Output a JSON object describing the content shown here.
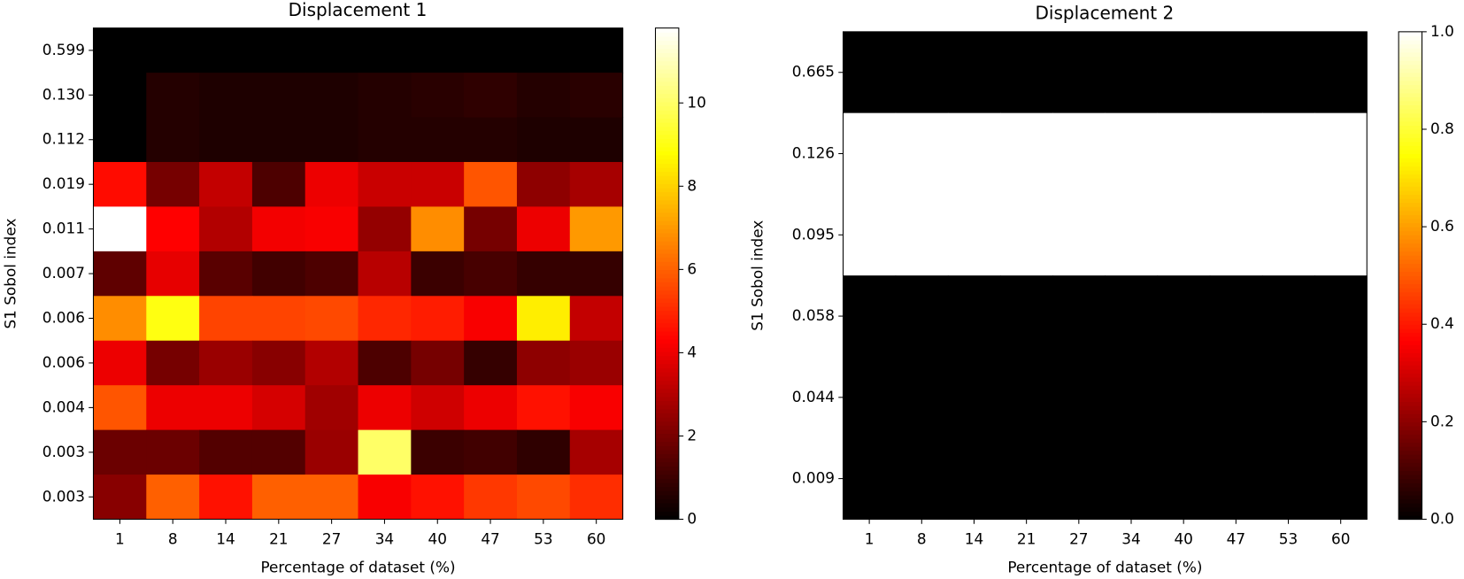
{
  "chart_data": [
    {
      "type": "heatmap",
      "title": "Displacement 1",
      "x_label": "Percentage of dataset (%)",
      "y_label": "S1 Sobol index",
      "colormap": "hot",
      "categories": [
        "1",
        "8",
        "14",
        "21",
        "27",
        "34",
        "40",
        "47",
        "53",
        "60"
      ],
      "y_categories": [
        "0.599",
        "0.130",
        "0.112",
        "0.019",
        "0.011",
        "0.007",
        "0.006",
        "0.006",
        "0.004",
        "0.003",
        "0.003"
      ],
      "values": [
        [
          0,
          0,
          0,
          0,
          0,
          0,
          0,
          0,
          0,
          0
        ],
        [
          0,
          0.6,
          0.5,
          0.5,
          0.5,
          0.6,
          0.7,
          0.8,
          0.6,
          0.7
        ],
        [
          0,
          0.6,
          0.5,
          0.5,
          0.5,
          0.6,
          0.6,
          0.6,
          0.5,
          0.5
        ],
        [
          4.5,
          2.0,
          3.3,
          1.3,
          4.0,
          3.4,
          3.4,
          5.8,
          2.4,
          2.8
        ],
        [
          11.8,
          4.3,
          3.0,
          4.1,
          4.2,
          2.5,
          6.8,
          2.0,
          4.0,
          7.0
        ],
        [
          1.6,
          3.9,
          1.5,
          1.1,
          1.3,
          3.1,
          1.0,
          1.2,
          0.9,
          0.9
        ],
        [
          6.8,
          9.0,
          5.5,
          5.5,
          5.6,
          5.0,
          4.8,
          4.2,
          8.5,
          3.3
        ],
        [
          4.0,
          2.0,
          2.6,
          2.3,
          3.0,
          1.3,
          2.0,
          0.9,
          2.4,
          2.6
        ],
        [
          5.8,
          4.0,
          4.0,
          3.6,
          2.7,
          4.0,
          3.5,
          4.0,
          4.6,
          4.2
        ],
        [
          1.8,
          1.8,
          1.4,
          1.4,
          2.6,
          10.0,
          1.0,
          1.1,
          0.8,
          2.8
        ],
        [
          2.3,
          6.0,
          4.6,
          6.0,
          6.0,
          4.2,
          4.6,
          5.3,
          5.6,
          5.1
        ]
      ],
      "clim": [
        0,
        11.8
      ],
      "cticks": [
        0,
        2,
        4,
        6,
        8,
        10
      ]
    },
    {
      "type": "heatmap",
      "title": "Displacement 2",
      "x_label": "Percentage of dataset (%)",
      "y_label": "S1 Sobol index",
      "colormap": "hot",
      "categories": [
        "1",
        "8",
        "14",
        "21",
        "27",
        "34",
        "40",
        "47",
        "53",
        "60"
      ],
      "y_categories": [
        "0.665",
        "0.126",
        "0.095",
        "0.058",
        "0.044",
        "0.009"
      ],
      "values": [
        [
          0,
          0,
          0,
          0,
          0,
          0,
          0,
          0,
          0,
          0
        ],
        [
          1,
          1,
          1,
          1,
          1,
          1,
          1,
          1,
          1,
          1
        ],
        [
          1,
          1,
          1,
          1,
          1,
          1,
          1,
          1,
          1,
          1
        ],
        [
          0,
          0,
          0,
          0,
          0,
          0,
          0,
          0,
          0,
          0
        ],
        [
          0,
          0,
          0,
          0,
          0,
          0,
          0,
          0,
          0,
          0
        ],
        [
          0,
          0,
          0,
          0,
          0,
          0,
          0,
          0,
          0,
          0
        ]
      ],
      "clim": [
        0,
        1
      ],
      "cticks": [
        {
          "value": 0,
          "label": "0.0"
        },
        {
          "value": 0.2,
          "label": "0.2"
        },
        {
          "value": 0.4,
          "label": "0.4"
        },
        {
          "value": 0.6,
          "label": "0.6"
        },
        {
          "value": 0.8,
          "label": "0.8"
        },
        {
          "value": 1,
          "label": "1.0"
        }
      ]
    }
  ]
}
